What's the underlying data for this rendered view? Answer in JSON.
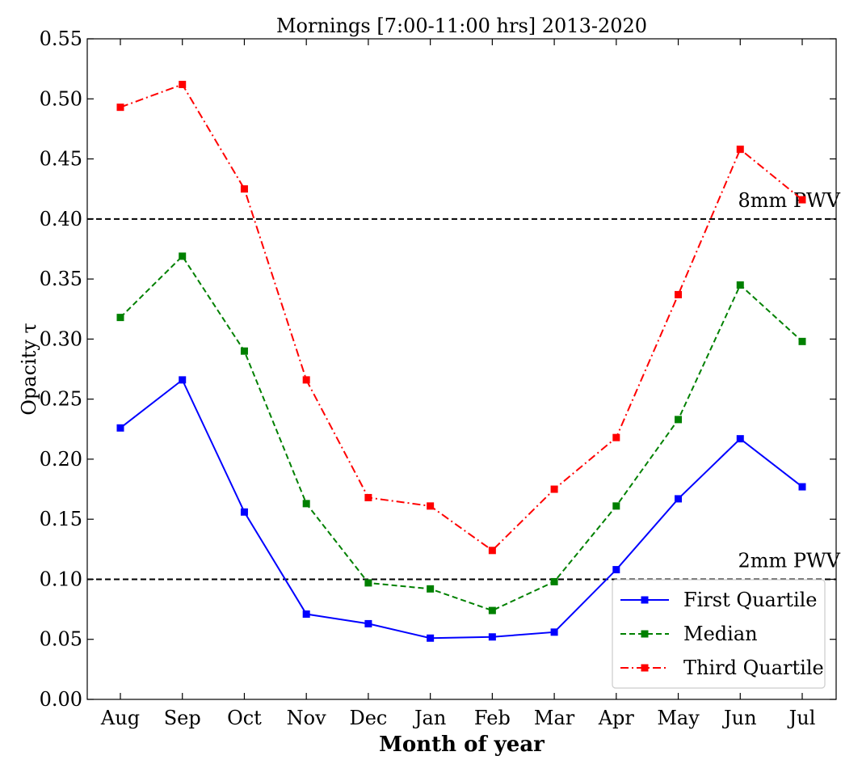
{
  "chart_data": {
    "type": "line",
    "title": "Mornings [7:00-11:00 hrs] 2013-2020",
    "xlabel": "Month of year",
    "ylabel": "Opacity τ",
    "categories": [
      "Aug",
      "Sep",
      "Oct",
      "Nov",
      "Dec",
      "Jan",
      "Feb",
      "Mar",
      "Apr",
      "May",
      "Jun",
      "Jul"
    ],
    "ylim": [
      0.0,
      0.55
    ],
    "yticks": [
      "0.00",
      "0.05",
      "0.10",
      "0.15",
      "0.20",
      "0.25",
      "0.30",
      "0.35",
      "0.40",
      "0.45",
      "0.50",
      "0.55"
    ],
    "grid": false,
    "legend": "bottom-right",
    "series": [
      {
        "name": "First Quartile",
        "color": "#0000ff",
        "linestyle": "solid",
        "marker": "square",
        "values": [
          0.226,
          0.266,
          0.156,
          0.071,
          0.063,
          0.051,
          0.052,
          0.056,
          0.108,
          0.167,
          0.217,
          0.177
        ]
      },
      {
        "name": "Median",
        "color": "#008000",
        "linestyle": "dashed",
        "marker": "square",
        "values": [
          0.318,
          0.369,
          0.29,
          0.163,
          0.097,
          0.092,
          0.074,
          0.098,
          0.161,
          0.233,
          0.345,
          0.298
        ]
      },
      {
        "name": "Third Quartile",
        "color": "#ff0000",
        "linestyle": "dashdot",
        "marker": "square",
        "values": [
          0.493,
          0.512,
          0.425,
          0.266,
          0.168,
          0.161,
          0.124,
          0.175,
          0.218,
          0.337,
          0.458,
          0.416
        ]
      }
    ],
    "reference_lines": [
      {
        "y": 0.4,
        "label": "8mm PWV",
        "color": "#000000",
        "linestyle": "dashed"
      },
      {
        "y": 0.1,
        "label": "2mm PWV",
        "color": "#000000",
        "linestyle": "dashed"
      }
    ]
  }
}
